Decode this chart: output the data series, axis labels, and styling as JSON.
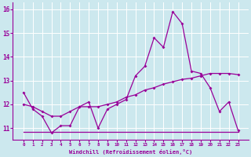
{
  "xlabel": "Windchill (Refroidissement éolien,°C)",
  "bg_color": "#cce8ee",
  "grid_color": "#b0d8e0",
  "line_color": "#990099",
  "x_values": [
    0,
    1,
    2,
    3,
    4,
    5,
    6,
    7,
    8,
    9,
    10,
    11,
    12,
    13,
    14,
    15,
    16,
    17,
    18,
    19,
    20,
    21,
    22,
    23
  ],
  "line1": [
    12.5,
    11.8,
    11.5,
    10.8,
    11.1,
    11.1,
    11.9,
    12.1,
    11.0,
    11.8,
    12.0,
    12.2,
    13.2,
    13.6,
    14.8,
    14.4,
    15.9,
    15.4,
    13.4,
    13.3,
    12.7,
    11.7,
    12.1,
    10.9
  ],
  "line2": [
    12.0,
    11.9,
    11.7,
    11.5,
    11.5,
    11.7,
    11.9,
    11.9,
    11.9,
    12.0,
    12.1,
    12.3,
    12.4,
    12.6,
    12.7,
    12.85,
    12.95,
    13.05,
    13.1,
    13.2,
    13.3,
    13.3,
    13.3,
    13.25
  ],
  "line3_x": [
    0,
    23
  ],
  "line3_y": [
    10.85,
    10.85
  ],
  "ylim": [
    10.5,
    16.3
  ],
  "yticks": [
    11,
    12,
    13,
    14,
    15,
    16
  ],
  "xticks": [
    0,
    1,
    2,
    3,
    4,
    5,
    6,
    7,
    8,
    9,
    10,
    11,
    12,
    13,
    14,
    15,
    16,
    17,
    18,
    19,
    20,
    21,
    22,
    23
  ],
  "marker": "D",
  "marker_size": 2,
  "line_width": 0.9
}
